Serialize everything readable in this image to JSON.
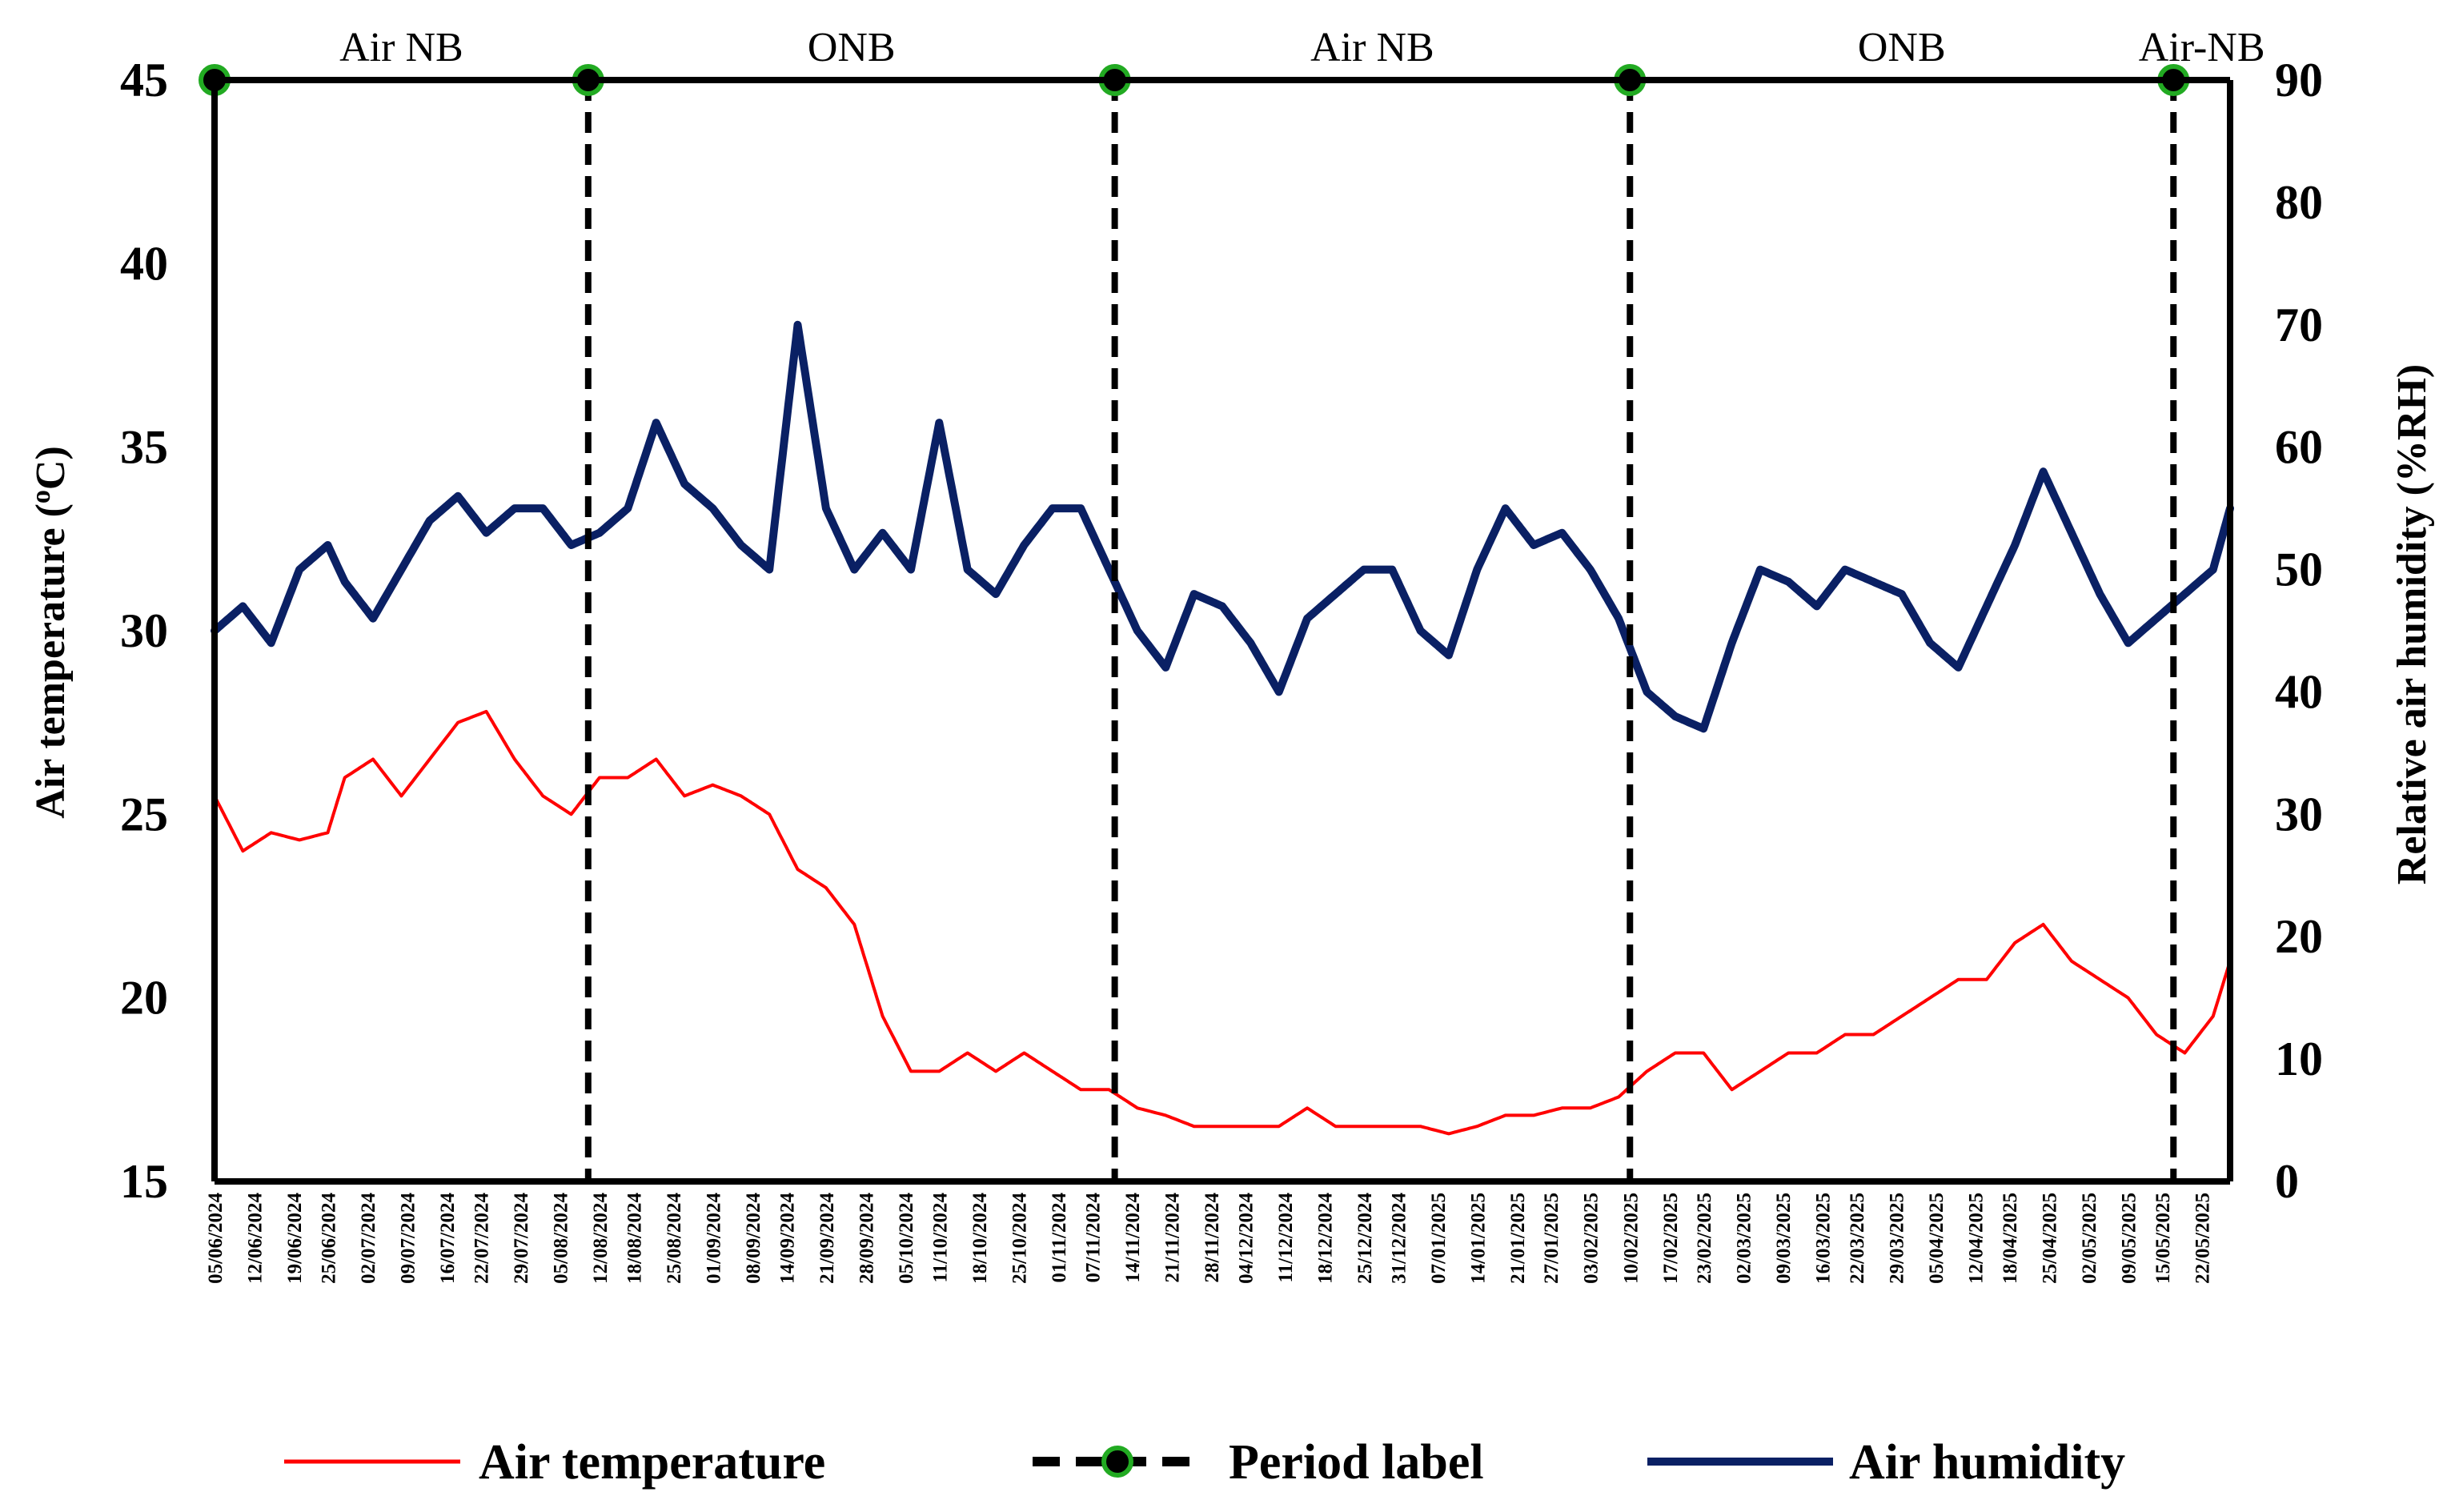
{
  "chart_data": {
    "type": "line",
    "title": "",
    "x_axis": {
      "type": "date",
      "range": [
        "2024-06-05",
        "2025-05-27"
      ],
      "tick_labels": [
        "05/06/2024",
        "12/06/2024",
        "19/06/2024",
        "25/06/2024",
        "02/07/2024",
        "09/07/2024",
        "16/07/2024",
        "22/07/2024",
        "29/07/2024",
        "05/08/2024",
        "12/08/2024",
        "18/08/2024",
        "25/08/2024",
        "01/09/2024",
        "08/09/2024",
        "14/09/2024",
        "21/09/2024",
        "28/09/2024",
        "05/10/2024",
        "11/10/2024",
        "18/10/2024",
        "25/10/2024",
        "01/11/2024",
        "07/11/2024",
        "14/11/2024",
        "21/11/2024",
        "28/11/2024",
        "04/12/2024",
        "11/12/2024",
        "18/12/2024",
        "25/12/2024",
        "31/12/2024",
        "07/01/2025",
        "14/01/2025",
        "21/01/2025",
        "27/01/2025",
        "03/02/2025",
        "10/02/2025",
        "17/02/2025",
        "23/02/2025",
        "02/03/2025",
        "09/03/2025",
        "16/03/2025",
        "22/03/2025",
        "29/03/2025",
        "05/04/2025",
        "12/04/2025",
        "18/04/2025",
        "25/04/2025",
        "02/05/2025",
        "09/05/2025",
        "15/05/2025",
        "22/05/2025"
      ]
    },
    "y_left": {
      "label": "Air temperature (oC)",
      "label_main": "Air temperature (",
      "label_sup": "o",
      "label_end": "C)",
      "range": [
        15,
        45
      ],
      "ticks": [
        15,
        20,
        25,
        30,
        35,
        40,
        45
      ]
    },
    "y_right": {
      "label": "Relative air humidity (%RH)",
      "range": [
        0,
        90
      ],
      "ticks": [
        0,
        10,
        20,
        30,
        40,
        50,
        60,
        70,
        80,
        90
      ]
    },
    "grid": false,
    "legend": {
      "placement": "bottom",
      "entries": [
        {
          "name": "Air temperature",
          "color": "#ff0000"
        },
        {
          "name": "Period label",
          "color": "#000000",
          "marker_color": "#22aa22"
        },
        {
          "name": "Air humidity",
          "color": "#0a2064"
        }
      ]
    },
    "periods": [
      {
        "label": "Air NB",
        "start": "2024-06-05",
        "end": "2024-08-10"
      },
      {
        "label": "ONB",
        "start": "2024-08-10",
        "end": "2024-11-11"
      },
      {
        "label": "Air NB",
        "start": "2024-11-11",
        "end": "2025-02-10"
      },
      {
        "label": "ONB",
        "start": "2025-02-10",
        "end": "2025-05-17"
      },
      {
        "label": "Air-NB",
        "start": "2025-05-17",
        "end": "2025-05-27"
      }
    ],
    "series": [
      {
        "name": "Air temperature",
        "axis": "left",
        "color": "#ff0000",
        "dates": [
          "2024-06-05",
          "2024-06-10",
          "2024-06-15",
          "2024-06-20",
          "2024-06-25",
          "2024-06-28",
          "2024-07-03",
          "2024-07-08",
          "2024-07-13",
          "2024-07-18",
          "2024-07-23",
          "2024-07-28",
          "2024-08-02",
          "2024-08-07",
          "2024-08-12",
          "2024-08-17",
          "2024-08-22",
          "2024-08-27",
          "2024-09-01",
          "2024-09-06",
          "2024-09-11",
          "2024-09-16",
          "2024-09-21",
          "2024-09-26",
          "2024-10-01",
          "2024-10-06",
          "2024-10-11",
          "2024-10-16",
          "2024-10-21",
          "2024-10-26",
          "2024-10-31",
          "2024-11-05",
          "2024-11-10",
          "2024-11-15",
          "2024-11-20",
          "2024-11-25",
          "2024-11-30",
          "2024-12-05",
          "2024-12-10",
          "2024-12-15",
          "2024-12-20",
          "2024-12-25",
          "2024-12-30",
          "2025-01-04",
          "2025-01-09",
          "2025-01-14",
          "2025-01-19",
          "2025-01-24",
          "2025-01-29",
          "2025-02-03",
          "2025-02-08",
          "2025-02-13",
          "2025-02-18",
          "2025-02-23",
          "2025-02-28",
          "2025-03-05",
          "2025-03-10",
          "2025-03-15",
          "2025-03-20",
          "2025-03-25",
          "2025-03-30",
          "2025-04-04",
          "2025-04-09",
          "2025-04-14",
          "2025-04-19",
          "2025-04-24",
          "2025-04-29",
          "2025-05-04",
          "2025-05-09",
          "2025-05-14",
          "2025-05-19",
          "2025-05-24",
          "2025-05-27"
        ],
        "values": [
          25.5,
          24.0,
          24.5,
          24.3,
          24.5,
          26.0,
          26.5,
          25.5,
          26.5,
          27.5,
          27.8,
          26.5,
          25.5,
          25.0,
          26.0,
          26.0,
          26.5,
          25.5,
          25.8,
          25.5,
          25.0,
          23.5,
          23.0,
          22.0,
          19.5,
          18.0,
          18.0,
          18.5,
          18.0,
          18.5,
          18.0,
          17.5,
          17.5,
          17.0,
          16.8,
          16.5,
          16.5,
          16.5,
          16.5,
          17.0,
          16.5,
          16.5,
          16.5,
          16.5,
          16.3,
          16.5,
          16.8,
          16.8,
          17.0,
          17.0,
          17.3,
          18.0,
          18.5,
          18.5,
          17.5,
          18.0,
          18.5,
          18.5,
          19.0,
          19.0,
          19.5,
          20.0,
          20.5,
          20.5,
          21.5,
          22.0,
          21.0,
          20.5,
          20.0,
          19.0,
          18.5,
          19.5,
          21.0
        ]
      },
      {
        "name": "Air humidity",
        "axis": "right",
        "color": "#0a2064",
        "dates": [
          "2024-06-05",
          "2024-06-10",
          "2024-06-15",
          "2024-06-20",
          "2024-06-25",
          "2024-06-28",
          "2024-07-03",
          "2024-07-08",
          "2024-07-13",
          "2024-07-18",
          "2024-07-23",
          "2024-07-28",
          "2024-08-02",
          "2024-08-07",
          "2024-08-12",
          "2024-08-17",
          "2024-08-22",
          "2024-08-27",
          "2024-09-01",
          "2024-09-06",
          "2024-09-11",
          "2024-09-16",
          "2024-09-21",
          "2024-09-26",
          "2024-10-01",
          "2024-10-06",
          "2024-10-11",
          "2024-10-16",
          "2024-10-21",
          "2024-10-26",
          "2024-10-31",
          "2024-11-05",
          "2024-11-10",
          "2024-11-15",
          "2024-11-20",
          "2024-11-25",
          "2024-11-30",
          "2024-12-05",
          "2024-12-10",
          "2024-12-15",
          "2024-12-20",
          "2024-12-25",
          "2024-12-30",
          "2025-01-04",
          "2025-01-09",
          "2025-01-14",
          "2025-01-19",
          "2025-01-24",
          "2025-01-29",
          "2025-02-03",
          "2025-02-08",
          "2025-02-13",
          "2025-02-18",
          "2025-02-23",
          "2025-02-28",
          "2025-03-05",
          "2025-03-10",
          "2025-03-15",
          "2025-03-20",
          "2025-03-25",
          "2025-03-30",
          "2025-04-04",
          "2025-04-09",
          "2025-04-14",
          "2025-04-19",
          "2025-04-24",
          "2025-04-29",
          "2025-05-04",
          "2025-05-09",
          "2025-05-14",
          "2025-05-19",
          "2025-05-24",
          "2025-05-27"
        ],
        "values": [
          45,
          47,
          44,
          50,
          52,
          49,
          46,
          50,
          54,
          56,
          53,
          55,
          55,
          52,
          53,
          55,
          62,
          57,
          55,
          52,
          50,
          70,
          55,
          50,
          53,
          50,
          62,
          50,
          48,
          52,
          55,
          55,
          50,
          45,
          42,
          48,
          47,
          44,
          40,
          46,
          48,
          50,
          50,
          45,
          43,
          50,
          55,
          52,
          53,
          50,
          46,
          40,
          38,
          37,
          44,
          50,
          49,
          47,
          50,
          49,
          48,
          44,
          42,
          47,
          52,
          58,
          53,
          48,
          44,
          46,
          48,
          50,
          55
        ]
      }
    ]
  }
}
